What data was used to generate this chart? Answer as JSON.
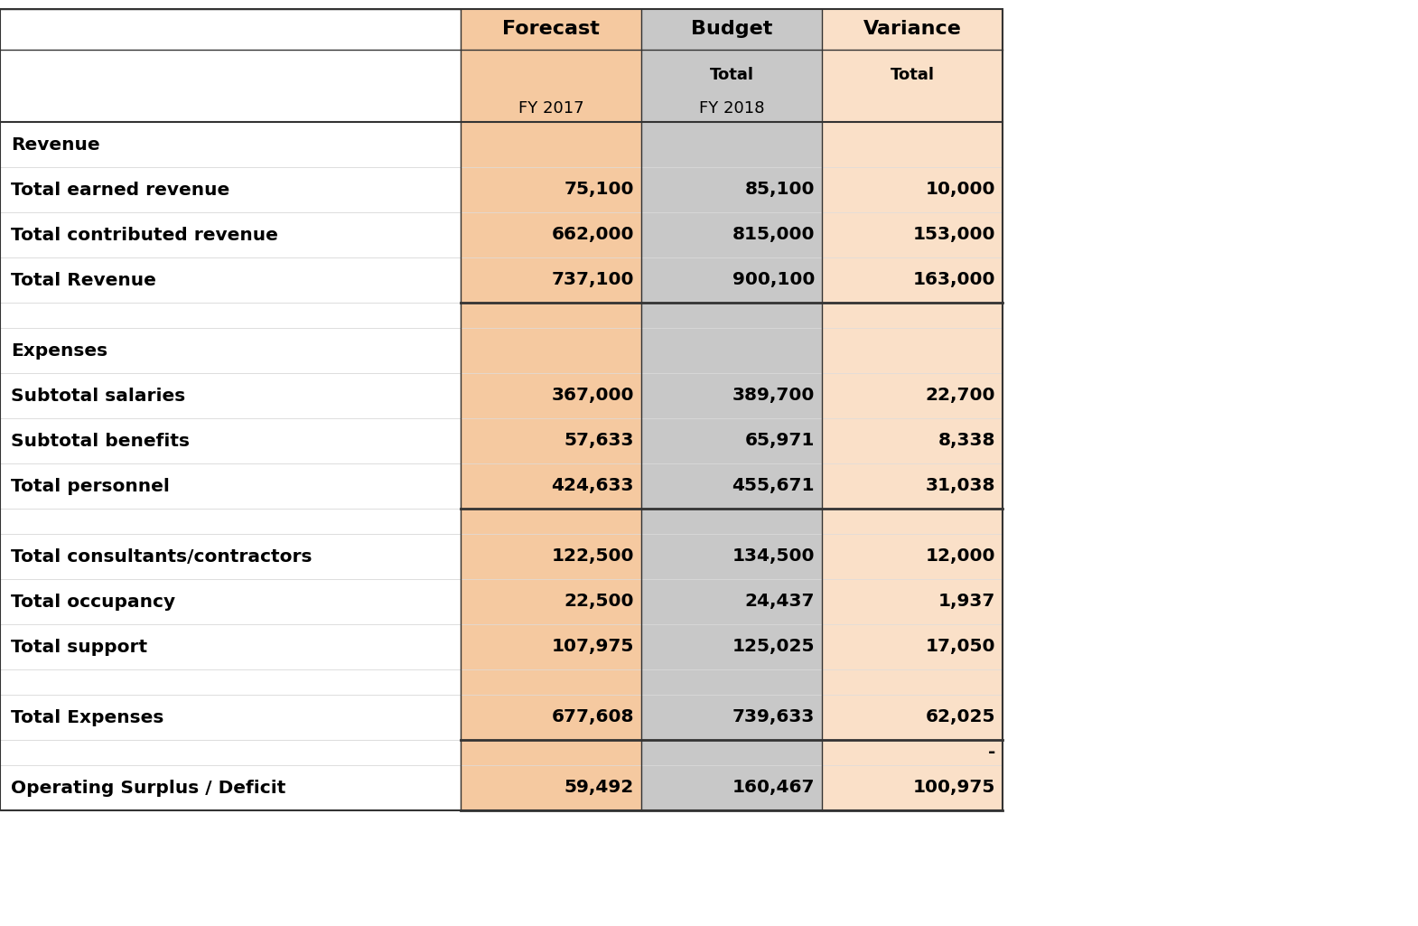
{
  "col_colors": {
    "forecast": "#F5C9A0",
    "budget": "#C8C8C8",
    "variance": "#FAE0C8"
  },
  "rows": [
    {
      "label": "Revenue",
      "forecast": "",
      "budget": "",
      "variance": "",
      "bold_label": true,
      "bold_vals": false,
      "blank": false,
      "border_bottom": false,
      "header_section": true
    },
    {
      "label": "Total earned revenue",
      "forecast": "75,100",
      "budget": "85,100",
      "variance": "10,000",
      "bold_label": true,
      "bold_vals": true,
      "blank": false,
      "border_bottom": false,
      "header_section": false
    },
    {
      "label": "Total contributed revenue",
      "forecast": "662,000",
      "budget": "815,000",
      "variance": "153,000",
      "bold_label": true,
      "bold_vals": true,
      "blank": false,
      "border_bottom": false,
      "header_section": false
    },
    {
      "label": "Total Revenue",
      "forecast": "737,100",
      "budget": "900,100",
      "variance": "163,000",
      "bold_label": true,
      "bold_vals": true,
      "blank": false,
      "border_bottom": true,
      "header_section": false
    },
    {
      "label": "",
      "forecast": "",
      "budget": "",
      "variance": "",
      "bold_label": false,
      "bold_vals": false,
      "blank": true,
      "border_bottom": false,
      "header_section": false
    },
    {
      "label": "Expenses",
      "forecast": "",
      "budget": "",
      "variance": "",
      "bold_label": true,
      "bold_vals": false,
      "blank": false,
      "border_bottom": false,
      "header_section": true
    },
    {
      "label": "Subtotal salaries",
      "forecast": "367,000",
      "budget": "389,700",
      "variance": "22,700",
      "bold_label": true,
      "bold_vals": true,
      "blank": false,
      "border_bottom": false,
      "header_section": false
    },
    {
      "label": "Subtotal benefits",
      "forecast": "57,633",
      "budget": "65,971",
      "variance": "8,338",
      "bold_label": true,
      "bold_vals": true,
      "blank": false,
      "border_bottom": false,
      "header_section": false
    },
    {
      "label": "Total personnel",
      "forecast": "424,633",
      "budget": "455,671",
      "variance": "31,038",
      "bold_label": true,
      "bold_vals": true,
      "blank": false,
      "border_bottom": true,
      "header_section": false
    },
    {
      "label": "",
      "forecast": "",
      "budget": "",
      "variance": "",
      "bold_label": false,
      "bold_vals": false,
      "blank": true,
      "border_bottom": false,
      "header_section": false
    },
    {
      "label": "Total consultants/contractors",
      "forecast": "122,500",
      "budget": "134,500",
      "variance": "12,000",
      "bold_label": true,
      "bold_vals": true,
      "blank": false,
      "border_bottom": false,
      "header_section": false
    },
    {
      "label": "Total occupancy",
      "forecast": "22,500",
      "budget": "24,437",
      "variance": "1,937",
      "bold_label": true,
      "bold_vals": true,
      "blank": false,
      "border_bottom": false,
      "header_section": false
    },
    {
      "label": "Total support",
      "forecast": "107,975",
      "budget": "125,025",
      "variance": "17,050",
      "bold_label": true,
      "bold_vals": true,
      "blank": false,
      "border_bottom": false,
      "header_section": false
    },
    {
      "label": "",
      "forecast": "",
      "budget": "",
      "variance": "",
      "bold_label": false,
      "bold_vals": false,
      "blank": true,
      "border_bottom": false,
      "header_section": false
    },
    {
      "label": "Total Expenses",
      "forecast": "677,608",
      "budget": "739,633",
      "variance": "62,025",
      "bold_label": true,
      "bold_vals": true,
      "blank": false,
      "border_bottom": true,
      "header_section": false
    },
    {
      "label": "",
      "forecast": "",
      "budget": "",
      "variance": "-",
      "bold_label": false,
      "bold_vals": true,
      "blank": true,
      "border_bottom": false,
      "header_section": false
    },
    {
      "label": "Operating Surplus / Deficit",
      "forecast": "59,492",
      "budget": "160,467",
      "variance": "100,975",
      "bold_label": true,
      "bold_vals": true,
      "blank": false,
      "border_bottom": true,
      "header_section": false
    }
  ],
  "bg_color": "#FFFFFF",
  "line_color_dark": "#333333",
  "line_color_light": "#BBBBBB",
  "line_color_grid": "#DDDDDD"
}
